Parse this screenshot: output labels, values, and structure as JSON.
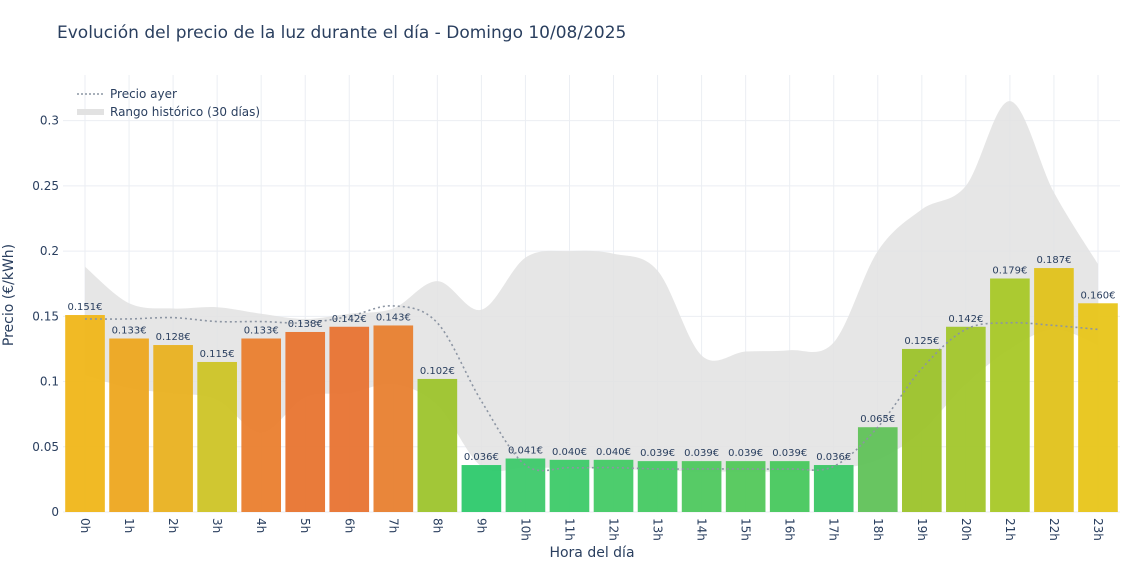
{
  "chart_data": {
    "type": "bar",
    "title": "Evolución del precio de la luz durante el día - Domingo 10/08/2025",
    "xlabel": "Hora del día",
    "ylabel": "Precio (€/kWh)",
    "ylim": [
      0,
      0.335
    ],
    "yticks": [
      0,
      0.05,
      0.1,
      0.15,
      0.2,
      0.25,
      0.3
    ],
    "ytick_labels": [
      "0",
      "0.05",
      "0.1",
      "0.15",
      "0.2",
      "0.25",
      "0.3"
    ],
    "grid": true,
    "legend_position": "top-left",
    "categories": [
      "0h",
      "1h",
      "2h",
      "3h",
      "4h",
      "5h",
      "6h",
      "7h",
      "8h",
      "9h",
      "10h",
      "11h",
      "12h",
      "13h",
      "14h",
      "15h",
      "16h",
      "17h",
      "18h",
      "19h",
      "20h",
      "21h",
      "22h",
      "23h"
    ],
    "values": [
      0.151,
      0.133,
      0.128,
      0.115,
      0.133,
      0.138,
      0.142,
      0.143,
      0.102,
      0.036,
      0.041,
      0.04,
      0.04,
      0.039,
      0.039,
      0.039,
      0.039,
      0.036,
      0.065,
      0.125,
      0.142,
      0.179,
      0.187,
      0.16
    ],
    "value_labels": [
      "0.151€",
      "0.133€",
      "0.128€",
      "0.115€",
      "0.133€",
      "0.138€",
      "0.142€",
      "0.143€",
      "0.102€",
      "0.036€",
      "0.041€",
      "0.040€",
      "0.040€",
      "0.039€",
      "0.039€",
      "0.039€",
      "0.039€",
      "0.036€",
      "0.065€",
      "0.125€",
      "0.142€",
      "0.179€",
      "0.187€",
      "0.160€"
    ],
    "bar_colors": [
      "#f0b619",
      "#eda71f",
      "#e9b120",
      "#cdc426",
      "#ea7e2e",
      "#e8742f",
      "#e87331",
      "#e8802f",
      "#9dc42c",
      "#2dc96c",
      "#3dc96a",
      "#3dca68",
      "#43ca65",
      "#45c962",
      "#4ec85e",
      "#52c85a",
      "#47c85d",
      "#3ac665",
      "#60c259",
      "#9cc32a",
      "#a2c62b",
      "#a8c827",
      "#e0c21a",
      "#e8c519"
    ],
    "series": [
      {
        "name": "Precio ayer",
        "style": "dotted-line",
        "color": "#8c95a3",
        "values": [
          0.148,
          0.148,
          0.149,
          0.146,
          0.146,
          0.145,
          0.15,
          0.158,
          0.145,
          0.085,
          0.036,
          0.034,
          0.034,
          0.033,
          0.033,
          0.033,
          0.033,
          0.035,
          0.065,
          0.11,
          0.14,
          0.145,
          0.143,
          0.14
        ]
      },
      {
        "name": "Rango histórico (30 días)",
        "style": "band",
        "color": "#e2e2e2",
        "upper": [
          0.188,
          0.16,
          0.156,
          0.157,
          0.152,
          0.148,
          0.152,
          0.156,
          0.177,
          0.155,
          0.195,
          0.2,
          0.198,
          0.185,
          0.12,
          0.123,
          0.124,
          0.13,
          0.2,
          0.232,
          0.25,
          0.315,
          0.245,
          0.19
        ],
        "lower": [
          0.105,
          0.095,
          0.091,
          0.086,
          0.061,
          0.088,
          0.091,
          0.098,
          0.082,
          0.035,
          0.034,
          0.034,
          0.033,
          0.032,
          0.031,
          0.031,
          0.031,
          0.033,
          0.04,
          0.062,
          0.098,
          0.125,
          0.14,
          0.128
        ]
      }
    ]
  }
}
